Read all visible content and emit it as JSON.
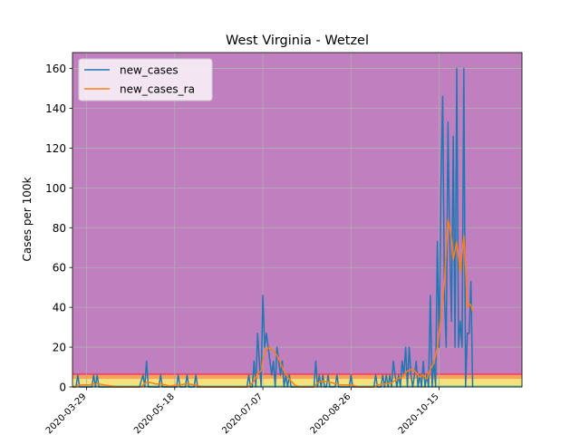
{
  "chart_data": {
    "type": "line",
    "title": "West Virginia - Wetzel",
    "xlabel": "",
    "ylabel": "Cases per 100k",
    "xlim": [
      "2020-03-21",
      "2020-12-01"
    ],
    "ylim": [
      0,
      168
    ],
    "grid": true,
    "legend_position": "top-left",
    "xticks": [
      "2020-03-29",
      "2020-05-18",
      "2020-07-07",
      "2020-08-26",
      "2020-10-15"
    ],
    "yticks": [
      0,
      20,
      40,
      60,
      80,
      100,
      120,
      140,
      160
    ],
    "risk_bands": [
      {
        "from": 0,
        "to": 1,
        "color": "#8fcf8f"
      },
      {
        "from": 1,
        "to": 4,
        "color": "#f4e17a"
      },
      {
        "from": 4,
        "to": 6,
        "color": "#f4a55a"
      },
      {
        "from": 6,
        "to": 7,
        "color": "#e8456a"
      },
      {
        "from": 7,
        "to": 168,
        "color": "#c07fbf"
      }
    ],
    "series": [
      {
        "name": "new_cases",
        "color": "#1f77b4",
        "points": [
          [
            "2020-03-21",
            0
          ],
          [
            "2020-03-23",
            0
          ],
          [
            "2020-03-24",
            6
          ],
          [
            "2020-03-25",
            0
          ],
          [
            "2020-04-01",
            0
          ],
          [
            "2020-04-02",
            6
          ],
          [
            "2020-04-03",
            0
          ],
          [
            "2020-04-04",
            6
          ],
          [
            "2020-04-05",
            0
          ],
          [
            "2020-04-15",
            0
          ],
          [
            "2020-04-28",
            0
          ],
          [
            "2020-04-30",
            6
          ],
          [
            "2020-05-01",
            0
          ],
          [
            "2020-05-02",
            13
          ],
          [
            "2020-05-03",
            0
          ],
          [
            "2020-05-09",
            0
          ],
          [
            "2020-05-10",
            6
          ],
          [
            "2020-05-11",
            0
          ],
          [
            "2020-05-19",
            0
          ],
          [
            "2020-05-20",
            6
          ],
          [
            "2020-05-21",
            0
          ],
          [
            "2020-05-24",
            0
          ],
          [
            "2020-05-25",
            6
          ],
          [
            "2020-05-26",
            0
          ],
          [
            "2020-05-29",
            0
          ],
          [
            "2020-05-30",
            6
          ],
          [
            "2020-05-31",
            0
          ],
          [
            "2020-06-10",
            0
          ],
          [
            "2020-06-28",
            0
          ],
          [
            "2020-06-29",
            6
          ],
          [
            "2020-06-30",
            0
          ],
          [
            "2020-07-01",
            0
          ],
          [
            "2020-07-02",
            13
          ],
          [
            "2020-07-03",
            0
          ],
          [
            "2020-07-04",
            27
          ],
          [
            "2020-07-05",
            13
          ],
          [
            "2020-07-06",
            0
          ],
          [
            "2020-07-07",
            46
          ],
          [
            "2020-07-08",
            20
          ],
          [
            "2020-07-09",
            27
          ],
          [
            "2020-07-10",
            20
          ],
          [
            "2020-07-11",
            13
          ],
          [
            "2020-07-12",
            6
          ],
          [
            "2020-07-13",
            13
          ],
          [
            "2020-07-14",
            0
          ],
          [
            "2020-07-15",
            20
          ],
          [
            "2020-07-16",
            13
          ],
          [
            "2020-07-17",
            6
          ],
          [
            "2020-07-18",
            13
          ],
          [
            "2020-07-19",
            0
          ],
          [
            "2020-07-20",
            6
          ],
          [
            "2020-07-21",
            0
          ],
          [
            "2020-07-22",
            6
          ],
          [
            "2020-07-23",
            0
          ],
          [
            "2020-08-05",
            0
          ],
          [
            "2020-08-06",
            13
          ],
          [
            "2020-08-07",
            0
          ],
          [
            "2020-08-08",
            6
          ],
          [
            "2020-08-09",
            0
          ],
          [
            "2020-08-10",
            6
          ],
          [
            "2020-08-11",
            0
          ],
          [
            "2020-08-12",
            0
          ],
          [
            "2020-08-13",
            6
          ],
          [
            "2020-08-14",
            0
          ],
          [
            "2020-08-17",
            0
          ],
          [
            "2020-08-18",
            6
          ],
          [
            "2020-08-19",
            0
          ],
          [
            "2020-08-25",
            0
          ],
          [
            "2020-08-26",
            6
          ],
          [
            "2020-08-27",
            0
          ],
          [
            "2020-09-08",
            0
          ],
          [
            "2020-09-09",
            6
          ],
          [
            "2020-09-10",
            0
          ],
          [
            "2020-09-12",
            0
          ],
          [
            "2020-09-13",
            6
          ],
          [
            "2020-09-14",
            0
          ],
          [
            "2020-09-15",
            6
          ],
          [
            "2020-09-16",
            0
          ],
          [
            "2020-09-17",
            6
          ],
          [
            "2020-09-18",
            0
          ],
          [
            "2020-09-19",
            13
          ],
          [
            "2020-09-20",
            6
          ],
          [
            "2020-09-21",
            0
          ],
          [
            "2020-09-22",
            6
          ],
          [
            "2020-09-23",
            0
          ],
          [
            "2020-09-24",
            13
          ],
          [
            "2020-09-25",
            6
          ],
          [
            "2020-09-26",
            20
          ],
          [
            "2020-09-27",
            0
          ],
          [
            "2020-09-28",
            20
          ],
          [
            "2020-09-29",
            6
          ],
          [
            "2020-09-30",
            0
          ],
          [
            "2020-10-01",
            6
          ],
          [
            "2020-10-02",
            13
          ],
          [
            "2020-10-03",
            0
          ],
          [
            "2020-10-04",
            6
          ],
          [
            "2020-10-05",
            0
          ],
          [
            "2020-10-06",
            13
          ],
          [
            "2020-10-07",
            0
          ],
          [
            "2020-10-08",
            6
          ],
          [
            "2020-10-09",
            0
          ],
          [
            "2020-10-10",
            46
          ],
          [
            "2020-10-11",
            0
          ],
          [
            "2020-10-12",
            13
          ],
          [
            "2020-10-13",
            0
          ],
          [
            "2020-10-14",
            73
          ],
          [
            "2020-10-15",
            20
          ],
          [
            "2020-10-16",
            100
          ],
          [
            "2020-10-17",
            146
          ],
          [
            "2020-10-18",
            46
          ],
          [
            "2020-10-19",
            20
          ],
          [
            "2020-10-20",
            133
          ],
          [
            "2020-10-21",
            73
          ],
          [
            "2020-10-22",
            33
          ],
          [
            "2020-10-23",
            126
          ],
          [
            "2020-10-24",
            20
          ],
          [
            "2020-10-25",
            160
          ],
          [
            "2020-10-26",
            20
          ],
          [
            "2020-10-27",
            33
          ],
          [
            "2020-10-28",
            20
          ],
          [
            "2020-10-29",
            160
          ],
          [
            "2020-10-30",
            0
          ],
          [
            "2020-10-31",
            27
          ],
          [
            "2020-11-01",
            27
          ],
          [
            "2020-11-02",
            53
          ],
          [
            "2020-11-03",
            0
          ]
        ]
      },
      {
        "name": "new_cases_ra",
        "color": "#ff7f0e",
        "points": [
          [
            "2020-03-21",
            0
          ],
          [
            "2020-03-23",
            0
          ],
          [
            "2020-03-24",
            1
          ],
          [
            "2020-03-30",
            1
          ],
          [
            "2020-04-02",
            1.5
          ],
          [
            "2020-04-05",
            1.5
          ],
          [
            "2020-04-08",
            1
          ],
          [
            "2020-04-12",
            0.5
          ],
          [
            "2020-04-15",
            0
          ],
          [
            "2020-04-29",
            0
          ],
          [
            "2020-05-01",
            2
          ],
          [
            "2020-05-03",
            2.5
          ],
          [
            "2020-05-07",
            1.5
          ],
          [
            "2020-05-10",
            1.5
          ],
          [
            "2020-05-15",
            0.5
          ],
          [
            "2020-05-20",
            1
          ],
          [
            "2020-05-25",
            1.5
          ],
          [
            "2020-05-30",
            1
          ],
          [
            "2020-06-03",
            0
          ],
          [
            "2020-06-28",
            0
          ],
          [
            "2020-06-30",
            1
          ],
          [
            "2020-07-02",
            3
          ],
          [
            "2020-07-04",
            7
          ],
          [
            "2020-07-06",
            8
          ],
          [
            "2020-07-07",
            14
          ],
          [
            "2020-07-09",
            19
          ],
          [
            "2020-07-11",
            20
          ],
          [
            "2020-07-13",
            18
          ],
          [
            "2020-07-15",
            16
          ],
          [
            "2020-07-17",
            12
          ],
          [
            "2020-07-19",
            8
          ],
          [
            "2020-07-21",
            5
          ],
          [
            "2020-07-23",
            3
          ],
          [
            "2020-07-25",
            1
          ],
          [
            "2020-07-28",
            0
          ],
          [
            "2020-08-05",
            0
          ],
          [
            "2020-08-07",
            2
          ],
          [
            "2020-08-10",
            3
          ],
          [
            "2020-08-13",
            2.5
          ],
          [
            "2020-08-16",
            2
          ],
          [
            "2020-08-20",
            1
          ],
          [
            "2020-08-24",
            1
          ],
          [
            "2020-08-27",
            1
          ],
          [
            "2020-08-30",
            0
          ],
          [
            "2020-09-08",
            0
          ],
          [
            "2020-09-10",
            1
          ],
          [
            "2020-09-14",
            1.5
          ],
          [
            "2020-09-18",
            2
          ],
          [
            "2020-09-21",
            4
          ],
          [
            "2020-09-24",
            5
          ],
          [
            "2020-09-27",
            8
          ],
          [
            "2020-09-30",
            9
          ],
          [
            "2020-10-02",
            7
          ],
          [
            "2020-10-04",
            5
          ],
          [
            "2020-10-06",
            6
          ],
          [
            "2020-10-08",
            4
          ],
          [
            "2020-10-10",
            9
          ],
          [
            "2020-10-12",
            12
          ],
          [
            "2020-10-14",
            20
          ],
          [
            "2020-10-16",
            35
          ],
          [
            "2020-10-18",
            53
          ],
          [
            "2020-10-20",
            84
          ],
          [
            "2020-10-21",
            80
          ],
          [
            "2020-10-22",
            74
          ],
          [
            "2020-10-23",
            64
          ],
          [
            "2020-10-25",
            73
          ],
          [
            "2020-10-27",
            58
          ],
          [
            "2020-10-29",
            76
          ],
          [
            "2020-10-30",
            60
          ],
          [
            "2020-10-31",
            40
          ],
          [
            "2020-11-01",
            42
          ],
          [
            "2020-11-02",
            41
          ],
          [
            "2020-11-03",
            38
          ]
        ]
      }
    ]
  }
}
